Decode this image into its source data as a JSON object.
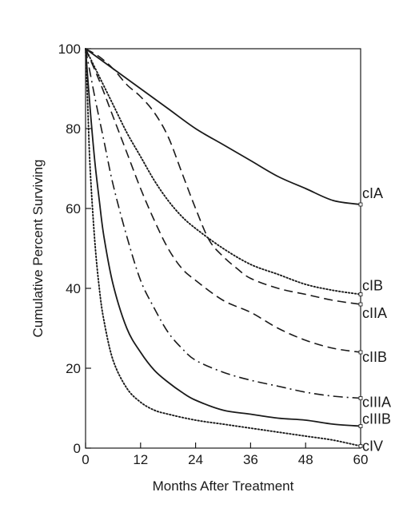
{
  "chart_data": {
    "type": "line",
    "title": "",
    "xlabel": "Months After Treatment",
    "ylabel": "Cumulative Percent Surviving",
    "xlim": [
      0,
      60
    ],
    "ylim": [
      0,
      100
    ],
    "xticks": [
      0,
      12,
      24,
      36,
      48,
      60
    ],
    "yticks": [
      0,
      20,
      40,
      60,
      80,
      100
    ],
    "grid": false,
    "legend": "labels at right end of lines",
    "series": [
      {
        "name": "cIA",
        "line_style": "solid",
        "x": [
          0,
          6,
          12,
          18,
          24,
          30,
          36,
          42,
          48,
          54,
          60
        ],
        "y": [
          100,
          95,
          90,
          85,
          80,
          76,
          72,
          68,
          65,
          62,
          61
        ]
      },
      {
        "name": "cIB",
        "line_style": "dotted",
        "x": [
          0,
          3,
          6,
          9,
          12,
          15,
          18,
          21,
          24,
          30,
          36,
          42,
          48,
          54,
          60
        ],
        "y": [
          100,
          93,
          86,
          79,
          73,
          67,
          62,
          58,
          55,
          50,
          46,
          43.5,
          41,
          39.5,
          38.5
        ]
      },
      {
        "name": "cIIA",
        "line_style": "dashed",
        "x": [
          0,
          3,
          6,
          9,
          12,
          15,
          18,
          21,
          24,
          27,
          30,
          33,
          36,
          42,
          48,
          54,
          60
        ],
        "y": [
          100,
          98,
          95,
          91,
          88,
          84,
          78,
          69,
          60,
          52,
          48,
          45,
          42.5,
          40,
          38.5,
          37,
          36
        ]
      },
      {
        "name": "cIIB",
        "line_style": "dashed",
        "x": [
          0,
          3,
          6,
          9,
          12,
          15,
          18,
          21,
          24,
          30,
          36,
          42,
          48,
          54,
          60
        ],
        "y": [
          100,
          92,
          83,
          74,
          65,
          57,
          50,
          45,
          42,
          37,
          34,
          30,
          27,
          25,
          24
        ]
      },
      {
        "name": "cIIIA",
        "line_style": "dash-dot",
        "x": [
          0,
          2,
          4,
          6,
          9,
          12,
          15,
          18,
          21,
          24,
          30,
          36,
          42,
          48,
          54,
          60
        ],
        "y": [
          100,
          88,
          77,
          66,
          53,
          42,
          35,
          29,
          25,
          22,
          19,
          17,
          15.5,
          14,
          13,
          12.5
        ]
      },
      {
        "name": "cIIIB",
        "line_style": "solid",
        "x": [
          0,
          1,
          2,
          3,
          4,
          6,
          9,
          12,
          15,
          18,
          21,
          24,
          30,
          36,
          42,
          48,
          54,
          60
        ],
        "y": [
          100,
          85,
          72,
          62,
          53,
          41,
          30,
          24,
          19.5,
          16.5,
          14,
          12,
          9.5,
          8.5,
          7.5,
          7,
          6,
          5.5
        ]
      },
      {
        "name": "cIV",
        "line_style": "dotted",
        "x": [
          0,
          0.5,
          1,
          2,
          3,
          4,
          6,
          9,
          12,
          15,
          18,
          24,
          30,
          36,
          42,
          48,
          54,
          60
        ],
        "y": [
          100,
          85,
          70,
          52,
          40,
          32,
          22,
          15,
          11.5,
          9.5,
          8.5,
          7,
          6,
          5,
          4,
          3,
          2,
          0.5
        ]
      }
    ]
  }
}
